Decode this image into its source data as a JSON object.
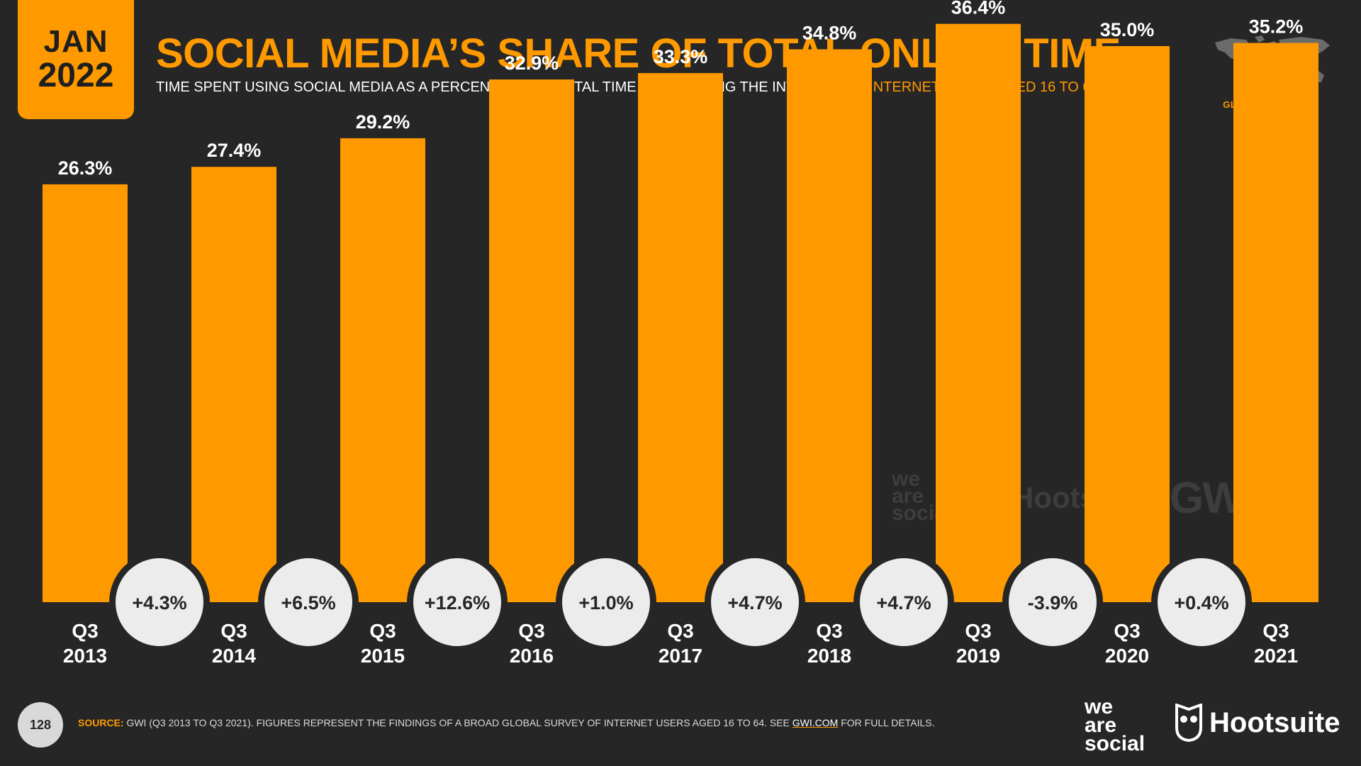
{
  "header": {
    "date_month": "JAN",
    "date_year": "2022",
    "title": "SOCIAL MEDIA’S SHARE OF TOTAL ONLINE TIME",
    "subtitle_main": "TIME SPENT USING SOCIAL MEDIA AS A PERCENTAGE OF TOTAL TIME SPENT USING THE INTERNET BY ",
    "subtitle_highlight": "INTERNET USERS AGED 16 TO 64",
    "global_label": "GLOBAL OVERVIEW"
  },
  "chart_data": {
    "type": "bar",
    "categories": [
      "Q3 2013",
      "Q3 2014",
      "Q3 2015",
      "Q3 2016",
      "Q3 2017",
      "Q3 2018",
      "Q3 2019",
      "Q3 2020",
      "Q3 2021"
    ],
    "category_lines": [
      [
        "Q3",
        "2013"
      ],
      [
        "Q3",
        "2014"
      ],
      [
        "Q3",
        "2015"
      ],
      [
        "Q3",
        "2016"
      ],
      [
        "Q3",
        "2017"
      ],
      [
        "Q3",
        "2018"
      ],
      [
        "Q3",
        "2019"
      ],
      [
        "Q3",
        "2020"
      ],
      [
        "Q3",
        "2021"
      ]
    ],
    "values": [
      26.3,
      27.4,
      29.2,
      32.9,
      33.3,
      34.8,
      36.4,
      35.0,
      35.2
    ],
    "value_labels": [
      "26.3%",
      "27.4%",
      "29.2%",
      "32.9%",
      "33.3%",
      "34.8%",
      "36.4%",
      "35.0%",
      "35.2%"
    ],
    "changes": [
      "+4.3%",
      "+6.5%",
      "+12.6%",
      "+1.0%",
      "+4.7%",
      "+4.7%",
      "-3.9%",
      "+0.4%"
    ],
    "ylim": [
      0,
      40
    ],
    "grid": false,
    "title": "SOCIAL MEDIA’S SHARE OF TOTAL ONLINE TIME",
    "xlabel": "",
    "ylabel": "",
    "bar_color": "#ff9900",
    "badge_color": "#ececec"
  },
  "watermarks": {
    "was_lines": [
      "we",
      "are",
      "social"
    ],
    "hootsuite": "Hootsuite",
    "gwi": "GWI."
  },
  "footer": {
    "page_number": "128",
    "source_label": "SOURCE:",
    "source_text": " GWI (Q3 2013 TO Q3 2021). FIGURES REPRESENT THE FINDINGS OF A BROAD GLOBAL SURVEY OF INTERNET USERS AGED 16 TO 64. SEE ",
    "source_link": "GWI.COM",
    "source_tail": " FOR FULL DETAILS.",
    "was_lines": [
      "we",
      "are",
      "social"
    ],
    "hootsuite": "Hootsuite"
  },
  "icons": {
    "map": "world-map-icon",
    "owl": "hootsuite-owl-icon"
  },
  "colors": {
    "accent": "#ff9900",
    "background": "#262626"
  }
}
